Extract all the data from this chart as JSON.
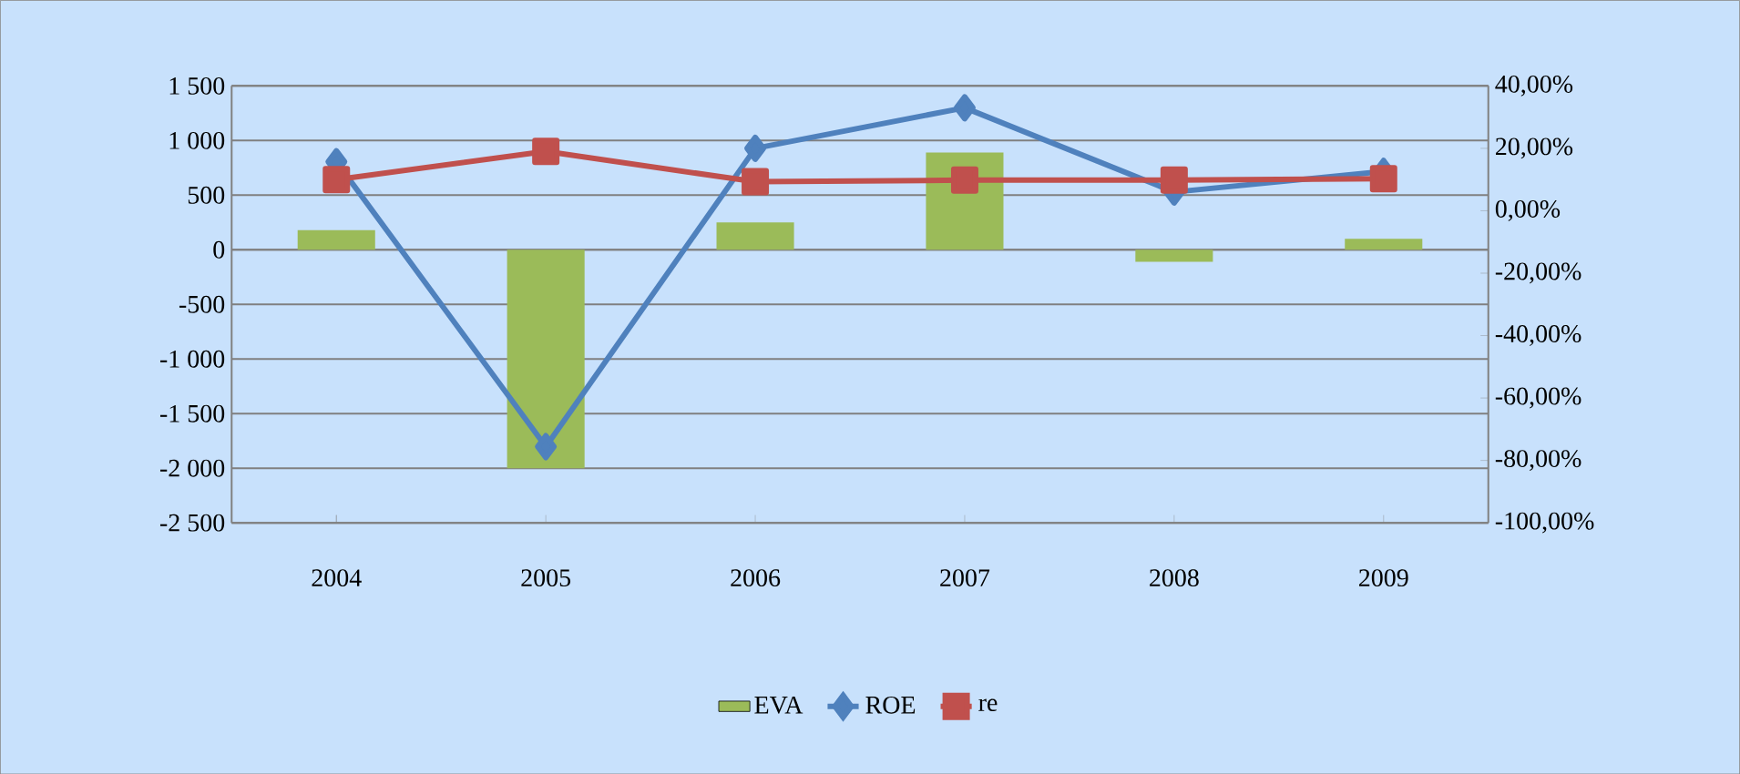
{
  "chart_data": {
    "type": "bar",
    "categories": [
      "2004",
      "2005",
      "2006",
      "2007",
      "2008",
      "2009"
    ],
    "series": [
      {
        "name": "EVA",
        "color": "#9bbb59",
        "values": [
          180,
          -2000,
          250,
          890,
          -110,
          100
        ]
      },
      {
        "name": "ROE",
        "type": "line",
        "axis": "y2",
        "marker": "diamond",
        "color": "#4f81bd",
        "values": [
          15.7,
          -75.6,
          20,
          33,
          6,
          12.6
        ]
      },
      {
        "name": "re",
        "type": "line",
        "axis": "y2",
        "marker": "square",
        "color": "#c0504d",
        "values": [
          10,
          19,
          9.3,
          9.8,
          9.8,
          10.3
        ]
      }
    ],
    "ylim": [
      -2500,
      1500
    ],
    "yticks": [
      {
        "value": -2500,
        "label": "-2 500"
      },
      {
        "value": -2000,
        "label": "-2 000"
      },
      {
        "value": -1500,
        "label": "-1 500"
      },
      {
        "value": -1000,
        "label": "-1 000"
      },
      {
        "value": -500,
        "label": "-500"
      },
      0,
      500,
      {
        "value": 1000,
        "label": "1 000"
      },
      {
        "value": 1500,
        "label": "1 500"
      }
    ],
    "y2lim": [
      -100,
      40
    ],
    "y2ticks": [
      {
        "value": -100,
        "label": "-100,00%"
      },
      {
        "value": -80,
        "label": "-80,00%"
      },
      {
        "value": -60,
        "label": "-60,00%"
      },
      {
        "value": -40,
        "label": "-40,00%"
      },
      {
        "value": -20,
        "label": "-20,00%"
      },
      {
        "value": 0,
        "label": "0,00%"
      },
      {
        "value": 20,
        "label": "20,00%"
      },
      {
        "value": 40,
        "label": "40,00%"
      }
    ],
    "grid": "y",
    "legend": "bottom"
  }
}
